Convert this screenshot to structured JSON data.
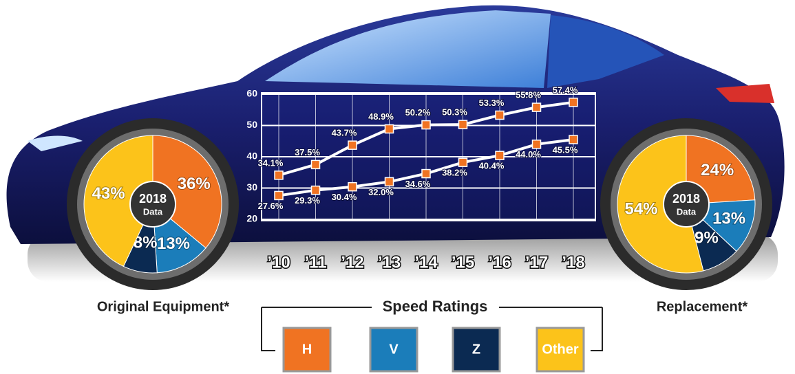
{
  "chart_data": [
    {
      "type": "line",
      "categories": [
        "’10",
        "’11",
        "’12",
        "’13",
        "’14",
        "’15",
        "’16",
        "’17",
        "’18"
      ],
      "series": [
        {
          "color": "#ffffff",
          "marker_color": "#f07322",
          "values": [
            34.1,
            37.5,
            43.7,
            48.9,
            50.2,
            50.3,
            53.3,
            55.8,
            57.4
          ],
          "value_labels": [
            "34.1%",
            "37.5%",
            "43.7%",
            "48.9%",
            "50.2%",
            "50.3%",
            "53.3%",
            "55.8%",
            "57.4%"
          ]
        },
        {
          "color": "#ffffff",
          "marker_color": "#f07322",
          "values": [
            27.6,
            29.3,
            30.4,
            32.0,
            34.6,
            38.2,
            40.4,
            44.0,
            45.5
          ],
          "value_labels": [
            "27.6%",
            "29.3%",
            "30.4%",
            "32.0%",
            "34.6%",
            "38.2%",
            "40.4%",
            "44.0%",
            "45.5%"
          ]
        }
      ],
      "ylim": [
        20,
        60
      ],
      "yticks": [
        20,
        30,
        40,
        50,
        60
      ],
      "grid": true
    },
    {
      "type": "pie",
      "title": "Original Equipment*",
      "center_title": "2018",
      "center_subtitle": "Data",
      "values": [
        36,
        13,
        8,
        43
      ],
      "value_labels": [
        "36%",
        "13%",
        "8%",
        "43%"
      ]
    },
    {
      "type": "pie",
      "title": "Replacement*",
      "center_title": "2018",
      "center_subtitle": "Data",
      "values": [
        24,
        13,
        9,
        54
      ],
      "value_labels": [
        "24%",
        "13%",
        "9%",
        "54%"
      ]
    }
  ],
  "legend": {
    "title": "Speed Ratings",
    "categories": [
      "H",
      "V",
      "Z",
      "Other"
    ],
    "colors": [
      "#f07322",
      "#1b7dba",
      "#0b2a52",
      "#fcc31a"
    ]
  }
}
